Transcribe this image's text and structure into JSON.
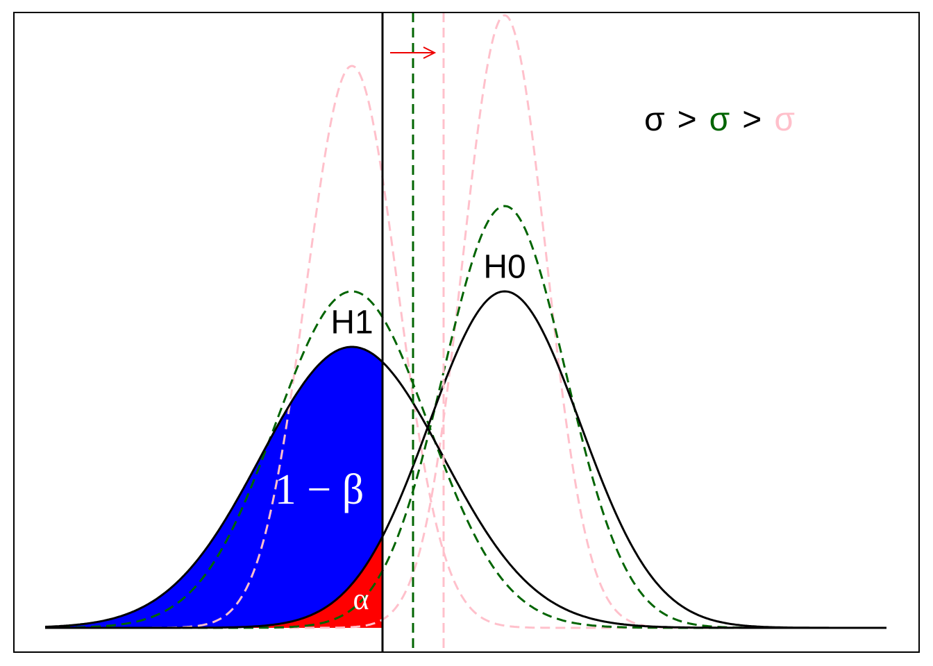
{
  "labels": {
    "h1": "H1",
    "h0": "H0",
    "power": "1 − β",
    "alpha": "α"
  },
  "legend": {
    "separator": ">",
    "items": [
      {
        "text": "σ",
        "color": "#000000"
      },
      {
        "text": "σ",
        "color": "#006400"
      },
      {
        "text": "σ",
        "color": "#ffc0cb"
      }
    ]
  }
}
